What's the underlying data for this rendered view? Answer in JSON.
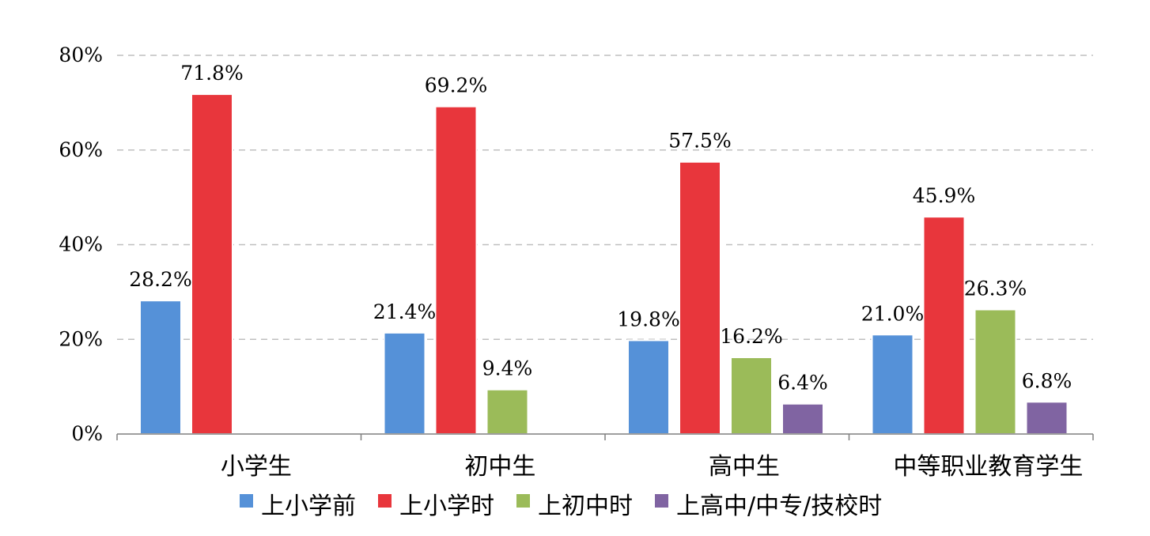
{
  "chart_data": {
    "type": "bar",
    "categories": [
      "小学生",
      "初中生",
      "高中生",
      "中等职业教育学生"
    ],
    "series": [
      {
        "name": "上小学前",
        "color": "#5591D8",
        "values": [
          28.2,
          21.4,
          19.8,
          21.0
        ],
        "labels": [
          "28.2%",
          "21.4%",
          "19.8%",
          "21.0%"
        ]
      },
      {
        "name": "上小学时",
        "color": "#E8363C",
        "values": [
          71.8,
          69.2,
          57.5,
          45.9
        ],
        "labels": [
          "71.8%",
          "69.2%",
          "57.5%",
          "45.9%"
        ]
      },
      {
        "name": "上初中时",
        "color": "#9BBB59",
        "values": [
          null,
          9.4,
          16.2,
          26.3
        ],
        "labels": [
          null,
          "9.4%",
          "16.2%",
          "26.3%"
        ]
      },
      {
        "name": "上高中/中专/技校时",
        "color": "#8064A2",
        "values": [
          null,
          null,
          6.4,
          6.8
        ],
        "labels": [
          null,
          null,
          "6.4%",
          "6.8%"
        ]
      }
    ],
    "yticks": [
      "0%",
      "20%",
      "40%",
      "60%",
      "80%"
    ],
    "ylim": [
      0,
      80
    ],
    "grid": true,
    "legend_position": "bottom"
  }
}
